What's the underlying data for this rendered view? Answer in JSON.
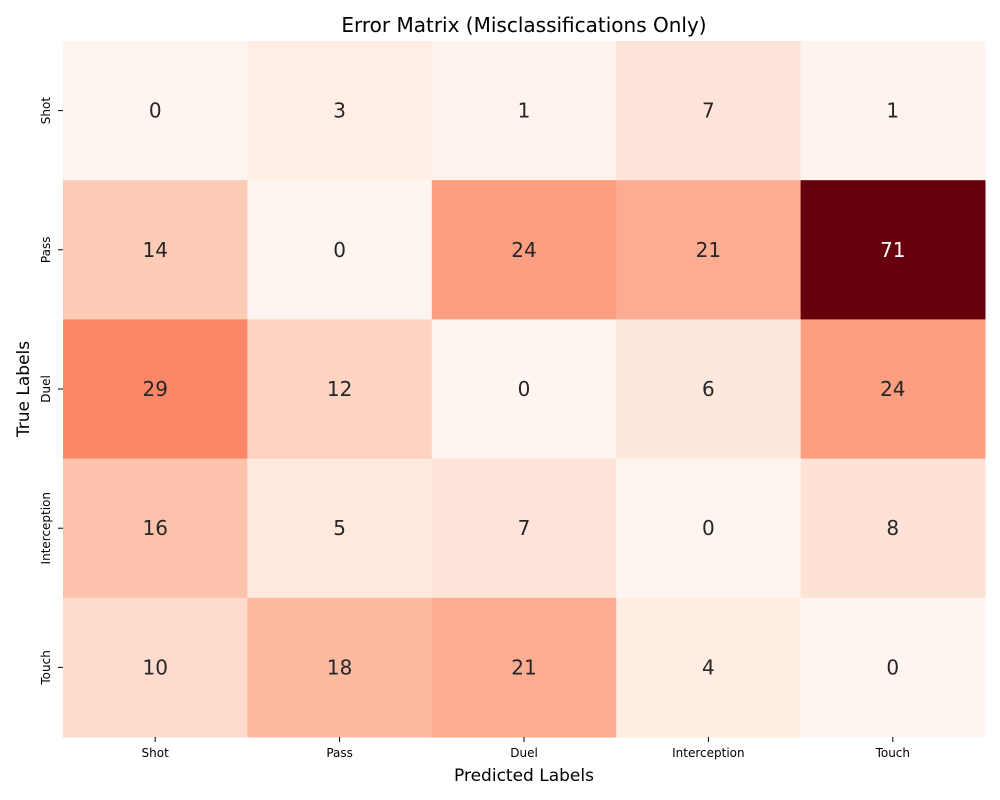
{
  "chart_data": {
    "type": "heatmap",
    "title": "Error Matrix (Misclassifications Only)",
    "xlabel": "Predicted Labels",
    "ylabel": "True Labels",
    "x_categories": [
      "Shot",
      "Pass",
      "Duel",
      "Interception",
      "Touch"
    ],
    "y_categories": [
      "Shot",
      "Pass",
      "Duel",
      "Interception",
      "Touch"
    ],
    "values": [
      [
        0,
        3,
        1,
        7,
        1
      ],
      [
        14,
        0,
        24,
        21,
        71
      ],
      [
        29,
        12,
        0,
        6,
        24
      ],
      [
        16,
        5,
        7,
        0,
        8
      ],
      [
        10,
        18,
        21,
        4,
        0
      ]
    ],
    "colormap": "Reds",
    "value_range": [
      0,
      71
    ],
    "colorbar": false
  }
}
